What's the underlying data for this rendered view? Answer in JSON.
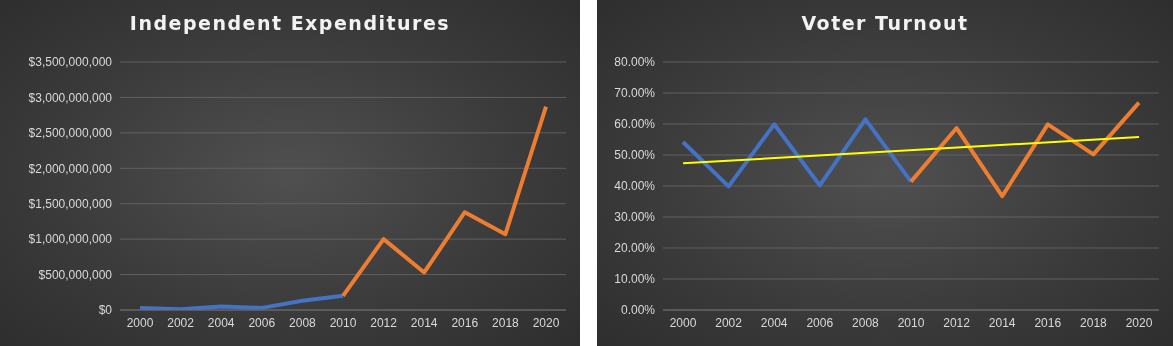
{
  "chart_data": [
    {
      "type": "line",
      "title": "Independent Expenditures",
      "categories": [
        "2000",
        "2002",
        "2004",
        "2006",
        "2008",
        "2010",
        "2012",
        "2014",
        "2016",
        "2018",
        "2020"
      ],
      "series": [
        {
          "color": "#4472c4",
          "values": [
            30000000,
            10000000,
            50000000,
            30000000,
            130000000,
            200000000,
            null,
            null,
            null,
            null,
            null
          ]
        },
        {
          "color": "#ed7d31",
          "values": [
            null,
            null,
            null,
            null,
            null,
            200000000,
            1000000000,
            530000000,
            1380000000,
            1070000000,
            2870000000
          ]
        }
      ],
      "ylim": [
        0,
        3500000000
      ],
      "yticks": [
        {
          "value": 0,
          "label": "$0"
        },
        {
          "value": 500000000,
          "label": "$500,000,000"
        },
        {
          "value": 1000000000,
          "label": "$1,000,000,000"
        },
        {
          "value": 1500000000,
          "label": "$1,500,000,000"
        },
        {
          "value": 2000000000,
          "label": "$2,000,000,000"
        },
        {
          "value": 2500000000,
          "label": "$2,500,000,000"
        },
        {
          "value": 3000000000,
          "label": "$3,000,000,000"
        },
        {
          "value": 3500000000,
          "label": "$3,500,000,000"
        }
      ],
      "grid": "y"
    },
    {
      "type": "line",
      "title": "Voter Turnout",
      "categories": [
        "2000",
        "2002",
        "2004",
        "2006",
        "2008",
        "2010",
        "2012",
        "2014",
        "2016",
        "2018",
        "2020"
      ],
      "series": [
        {
          "color": "#4472c4",
          "values": [
            54.2,
            39.9,
            59.9,
            40.2,
            61.5,
            41.4,
            null,
            null,
            null,
            null,
            null
          ]
        },
        {
          "color": "#ed7d31",
          "values": [
            null,
            null,
            null,
            null,
            null,
            41.4,
            58.7,
            36.7,
            59.9,
            50.2,
            66.9
          ]
        },
        {
          "color": "#ffff00",
          "values": [
            47.3,
            null,
            null,
            null,
            null,
            null,
            null,
            null,
            null,
            null,
            55.8
          ]
        }
      ],
      "ylim": [
        0,
        80
      ],
      "yticks": [
        {
          "value": 0,
          "label": "0.00%"
        },
        {
          "value": 10,
          "label": "10.00%"
        },
        {
          "value": 20,
          "label": "20.00%"
        },
        {
          "value": 30,
          "label": "30.00%"
        },
        {
          "value": 40,
          "label": "40.00%"
        },
        {
          "value": 50,
          "label": "50.00%"
        },
        {
          "value": 60,
          "label": "60.00%"
        },
        {
          "value": 70,
          "label": "70.00%"
        },
        {
          "value": 80,
          "label": "80.00%"
        }
      ],
      "grid": "y"
    }
  ]
}
